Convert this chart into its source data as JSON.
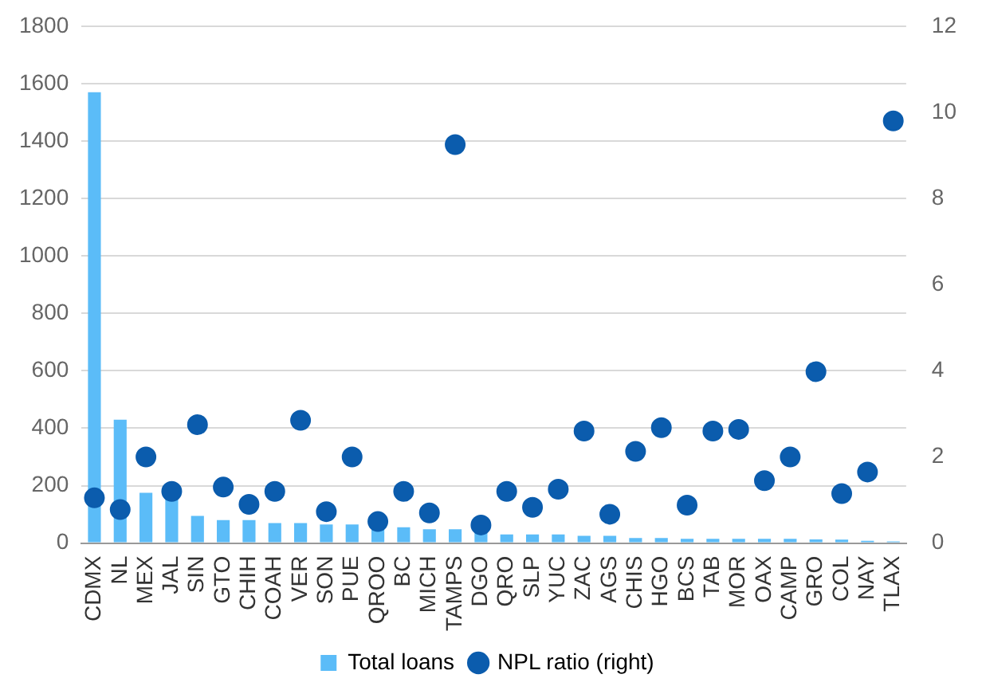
{
  "chart_data": {
    "type": "bar",
    "categories": [
      "CDMX",
      "NL",
      "MEX",
      "JAL",
      "SIN",
      "GTO",
      "CHIH",
      "COAH",
      "VER",
      "SON",
      "PUE",
      "QROO",
      "BC",
      "MICH",
      "TAMPS",
      "DGO",
      "QRO",
      "SLP",
      "YUC",
      "ZAC",
      "AGS",
      "CHIS",
      "HGO",
      "BCS",
      "TAB",
      "MOR",
      "OAX",
      "CAMP",
      "GRO",
      "COL",
      "NAY",
      "TLAX"
    ],
    "series": [
      {
        "name": "Total loans",
        "color": "#5bbcf8",
        "values": [
          1570,
          430,
          175,
          165,
          95,
          80,
          80,
          70,
          70,
          65,
          65,
          60,
          55,
          48,
          48,
          40,
          30,
          30,
          30,
          25,
          25,
          18,
          18,
          15,
          15,
          15,
          15,
          15,
          13,
          12,
          8,
          6
        ]
      },
      {
        "name": "NPL ratio (right)",
        "type": "scatter",
        "axis": "y2",
        "color": "#0b5cad",
        "values": [
          1.05,
          0.78,
          2.0,
          1.2,
          2.75,
          1.3,
          0.9,
          1.2,
          2.85,
          0.73,
          2.0,
          0.5,
          1.2,
          0.7,
          9.25,
          0.42,
          1.2,
          0.83,
          1.25,
          2.6,
          0.67,
          2.13,
          2.68,
          0.88,
          2.6,
          2.64,
          1.45,
          2.0,
          3.98,
          1.15,
          1.65,
          9.8
        ]
      }
    ],
    "ylim": [
      0,
      1800
    ],
    "yticks": [
      0,
      200,
      400,
      600,
      800,
      1000,
      1200,
      1400,
      1600,
      1800
    ],
    "y2lim": [
      0,
      12
    ],
    "y2ticks": [
      0,
      2,
      4,
      6,
      8,
      10,
      12
    ],
    "grid": "y",
    "legend": "bottom",
    "marker": "circle"
  }
}
